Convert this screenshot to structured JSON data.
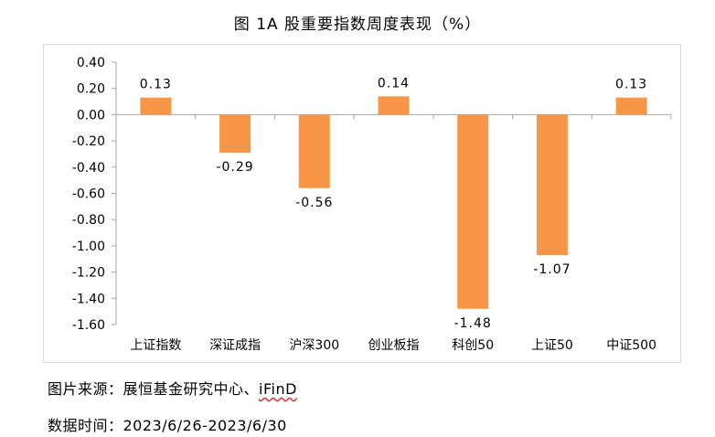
{
  "chart_data": {
    "type": "bar",
    "title": "图 1A 股重要指数周度表现（%）",
    "xlabel": "",
    "ylabel": "",
    "categories": [
      "上证指数",
      "深证成指",
      "沪深300",
      "创业板指",
      "科创50",
      "上证50",
      "中证500"
    ],
    "values": [
      0.13,
      -0.29,
      -0.56,
      0.14,
      -1.48,
      -1.07,
      0.13
    ],
    "value_labels": [
      "0.13",
      "-0.29",
      "-0.56",
      "0.14",
      "-1.48",
      "-1.07",
      "0.13"
    ],
    "ylim": [
      -1.6,
      0.4
    ],
    "yticks": [
      0.4,
      0.2,
      0.0,
      -0.2,
      -0.4,
      -0.6,
      -0.8,
      -1.0,
      -1.2,
      -1.4,
      -1.6
    ],
    "ytick_labels": [
      "0.40",
      "0.20",
      "0.00",
      "-0.20",
      "-0.40",
      "-0.60",
      "-0.80",
      "-1.00",
      "-1.20",
      "-1.40",
      "-1.60"
    ],
    "grid": false,
    "legend": "none",
    "bar_color": "#F79646"
  },
  "footer": {
    "source_prefix": "图片来源：展恒基金研究中心、",
    "source_brand": "iFinD",
    "date_range": "数据时间：2023/6/26-2023/6/30"
  }
}
